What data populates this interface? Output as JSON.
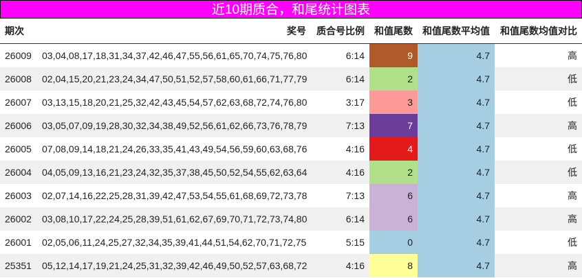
{
  "title": "近10期质合，和尾统计图表",
  "headers": [
    "期次",
    "奖号",
    "质合号比例",
    "和值尾数",
    "和值尾数平均值",
    "和值尾数均值对比"
  ],
  "colors": {
    "title_bg": "#ff00ff",
    "avg_bg": "#a6cee3"
  },
  "rows": [
    {
      "period": "26009",
      "numbers": "03,04,08,17,18,31,34,37,42,46,47,55,56,61,65,70,74,75,76,80",
      "ratio": "6:14",
      "tail": "9",
      "avg": "4.7",
      "compare": "高",
      "color": "#b15928",
      "text": "#fff"
    },
    {
      "period": "26008",
      "numbers": "02,04,15,20,21,23,24,34,47,50,51,52,57,58,60,61,66,71,77,79",
      "ratio": "6:14",
      "tail": "2",
      "avg": "4.7",
      "compare": "低",
      "color": "#b2df8a",
      "text": "#222"
    },
    {
      "period": "26007",
      "numbers": "03,13,15,18,20,21,25,32,42,43,45,54,57,62,63,68,72,74,76,80",
      "ratio": "3:17",
      "tail": "3",
      "avg": "4.7",
      "compare": "低",
      "color": "#fb9a99",
      "text": "#222"
    },
    {
      "period": "26006",
      "numbers": "03,05,07,09,19,28,30,32,34,38,49,52,56,61,62,66,73,76,78,79",
      "ratio": "7:13",
      "tail": "7",
      "avg": "4.7",
      "compare": "高",
      "color": "#6a3d9a",
      "text": "#fff"
    },
    {
      "period": "26005",
      "numbers": "07,08,09,14,18,21,24,26,33,35,41,43,49,54,56,59,60,63,68,76",
      "ratio": "4:16",
      "tail": "4",
      "avg": "4.7",
      "compare": "低",
      "color": "#e31a1c",
      "text": "#fff"
    },
    {
      "period": "26004",
      "numbers": "04,05,09,13,16,21,23,24,32,35,37,38,45,50,52,54,55,62,63,64",
      "ratio": "4:16",
      "tail": "2",
      "avg": "4.7",
      "compare": "低",
      "color": "#b2df8a",
      "text": "#222"
    },
    {
      "period": "26003",
      "numbers": "02,07,14,16,22,25,28,31,39,42,47,53,54,55,61,68,69,72,73,78",
      "ratio": "7:13",
      "tail": "6",
      "avg": "4.7",
      "compare": "高",
      "color": "#cab2d6",
      "text": "#222"
    },
    {
      "period": "26002",
      "numbers": "03,08,10,17,22,24,25,28,39,51,61,62,67,69,70,71,72,73,74,80",
      "ratio": "6:14",
      "tail": "6",
      "avg": "4.7",
      "compare": "高",
      "color": "#cab2d6",
      "text": "#222"
    },
    {
      "period": "26001",
      "numbers": "02,05,06,11,24,25,27,32,34,35,39,41,44,51,54,62,70,71,72,75",
      "ratio": "5:15",
      "tail": "0",
      "avg": "4.7",
      "compare": "低",
      "color": "#a6cee3",
      "text": "#222"
    },
    {
      "period": "25351",
      "numbers": "05,12,14,17,19,21,24,25,31,32,39,42,46,49,50,52,57,63,68,72",
      "ratio": "4:16",
      "tail": "8",
      "avg": "4.7",
      "compare": "高",
      "color": "#ffff99",
      "text": "#222"
    }
  ]
}
